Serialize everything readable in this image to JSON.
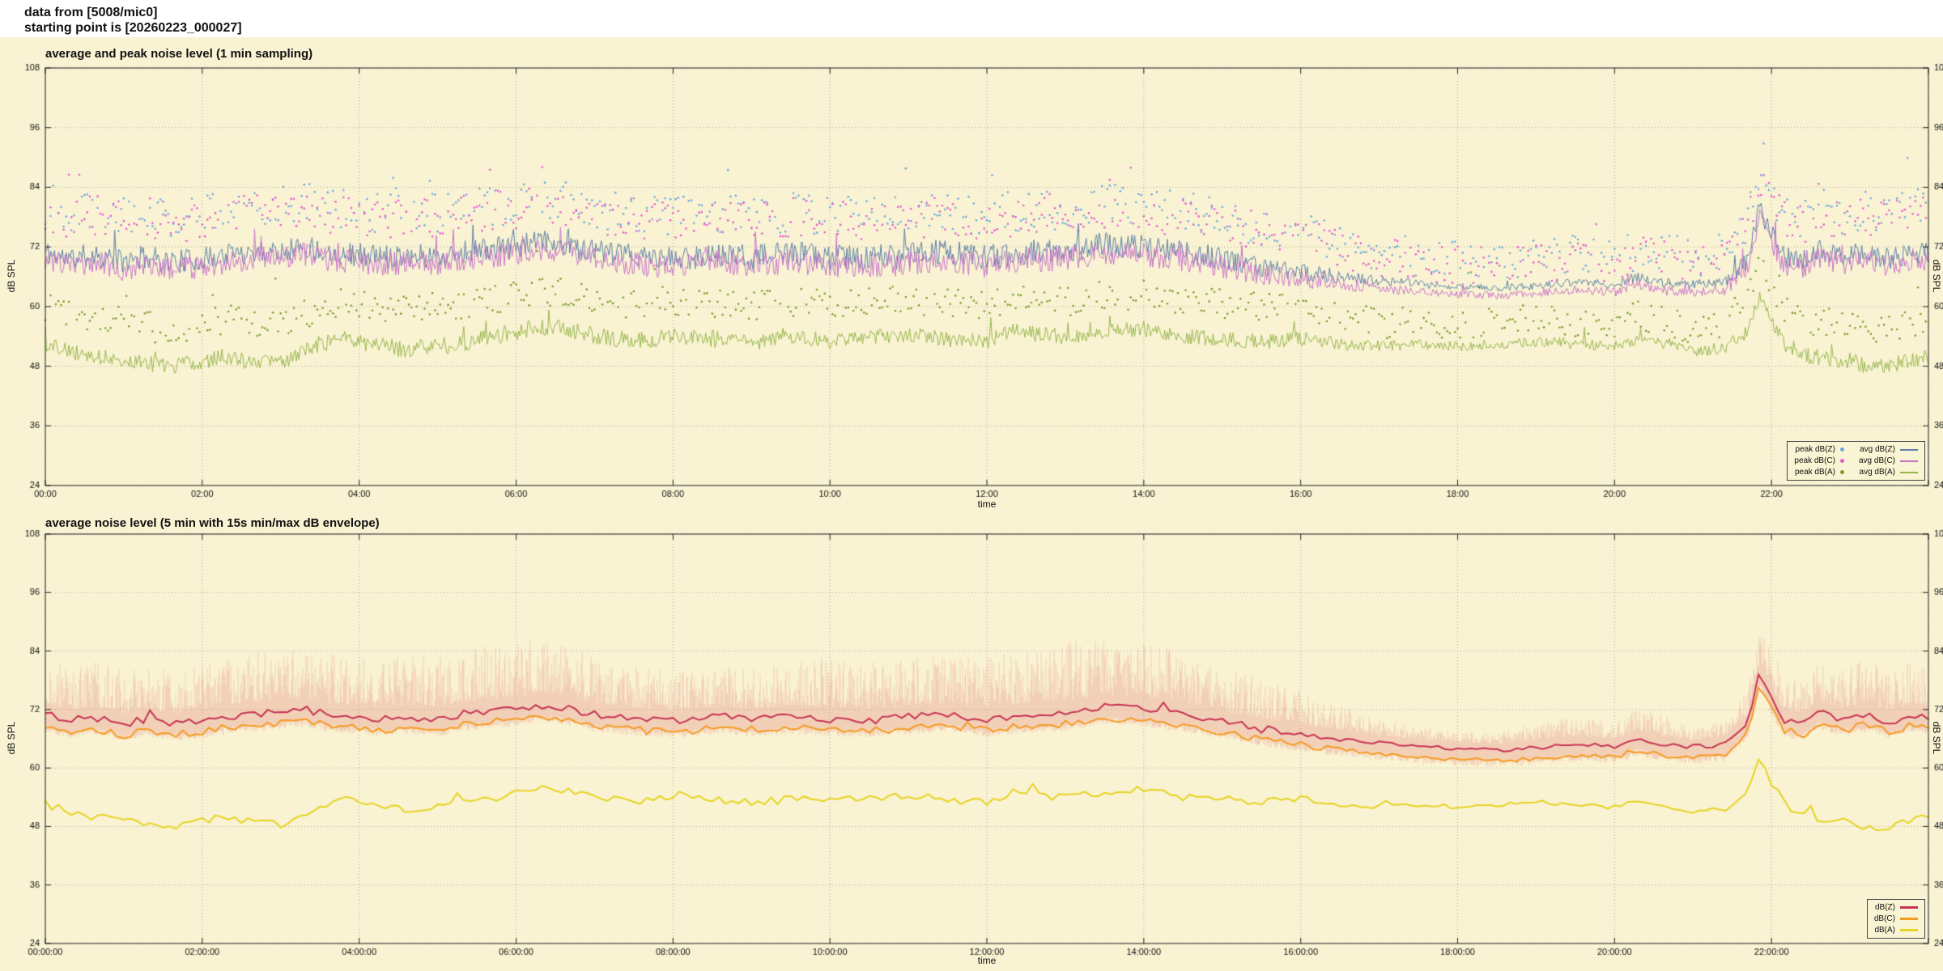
{
  "header": {
    "line1": "data from [5008/mic0]",
    "line2": "starting point is [20260223_000027]"
  },
  "palette": {
    "page_bg": "#ffffff",
    "chart_bg": "#f9f3d3",
    "grid": "#a8a890",
    "axis": "#222222",
    "text": "#111111",
    "envelope": "rgba(228,110,110,0.28)"
  },
  "chart_data": [
    {
      "type": "line",
      "title": "average and peak noise level (1 min sampling)",
      "xlabel": "time",
      "ylabel_left": "dB SPL",
      "ylabel_right": "dB SPL",
      "ylim": [
        24,
        108
      ],
      "yticks": [
        24,
        36,
        48,
        60,
        72,
        84,
        96,
        108
      ],
      "x_hours": [
        0,
        24
      ],
      "xtick_step_hours": 2,
      "xtick_style": "hm",
      "grid": true,
      "legend_position": "bottom-right",
      "sampling_minutes": 1,
      "series": [
        {
          "name": "avg dB(Z)",
          "color": "#5b7fa6",
          "width": 1,
          "base": "z",
          "offset": 0,
          "jitter": "zjit",
          "seed": 11
        },
        {
          "name": "avg dB(C)",
          "color": "#c873c8",
          "width": 1,
          "base": "z",
          "offset": -1.5,
          "jitter": "zjit",
          "seed": 23
        },
        {
          "name": "avg dB(A)",
          "color": "#97b54b",
          "width": 1,
          "base": "a",
          "offset": 0,
          "jitter": "ajit",
          "seed": 37
        }
      ],
      "scatter": [
        {
          "name": "peak dB(Z)",
          "color": "#6fa8dc",
          "base": "z",
          "peak_offset": "pkz",
          "spread": 4,
          "seed": 51,
          "step_minutes": 2
        },
        {
          "name": "peak dB(C)",
          "color": "#e65ad0",
          "base": "z",
          "peak_offset": "pkc",
          "spread": 4,
          "seed": 63,
          "step_minutes": 2
        },
        {
          "name": "peak dB(A)",
          "color": "#7d9c2e",
          "base": "a",
          "peak_offset": "pka",
          "spread": 3,
          "seed": 75,
          "step_minutes": 2
        }
      ]
    },
    {
      "type": "line",
      "title": "average noise level (5 min with 15s min/max dB envelope)",
      "xlabel": "time",
      "ylabel_left": "dB SPL",
      "ylabel_right": "dB SPL",
      "ylim": [
        24,
        108
      ],
      "yticks": [
        24,
        36,
        48,
        60,
        72,
        84,
        96,
        108
      ],
      "x_hours": [
        0,
        24
      ],
      "xtick_step_hours": 2,
      "xtick_style": "hms",
      "grid": true,
      "legend_position": "bottom-right",
      "sampling_minutes": 5,
      "envelope": {
        "base": "z",
        "amp": "env",
        "seed": 131
      },
      "series": [
        {
          "name": "dB(Z)",
          "color": "#c73352",
          "width": 2,
          "base": "z",
          "offset": 0,
          "jitter": "smooth",
          "seed": 91
        },
        {
          "name": "dB(C)",
          "color": "#f59a23",
          "width": 2,
          "base": "z",
          "offset": -2.2,
          "jitter": "smooth",
          "seed": 101
        },
        {
          "name": "dB(A)",
          "color": "#e6d322",
          "width": 2,
          "base": "a",
          "offset": 0,
          "jitter": "smooth",
          "seed": 111
        }
      ]
    }
  ],
  "curves": {
    "z": [
      [
        0,
        71
      ],
      [
        0.3,
        69.5
      ],
      [
        0.6,
        70.5
      ],
      [
        1,
        69
      ],
      [
        1.3,
        70
      ],
      [
        1.6,
        69
      ],
      [
        2,
        69.5
      ],
      [
        2.3,
        70.5
      ],
      [
        2.6,
        71
      ],
      [
        3,
        71.5
      ],
      [
        3.3,
        72
      ],
      [
        3.6,
        71
      ],
      [
        4,
        70.5
      ],
      [
        4.3,
        70
      ],
      [
        4.6,
        70.5
      ],
      [
        5,
        70
      ],
      [
        5.3,
        71
      ],
      [
        5.6,
        71.5
      ],
      [
        6,
        72
      ],
      [
        6.3,
        73
      ],
      [
        6.6,
        72.5
      ],
      [
        7,
        71
      ],
      [
        7.3,
        70.5
      ],
      [
        7.6,
        70
      ],
      [
        8,
        69.5
      ],
      [
        8.3,
        70
      ],
      [
        8.6,
        70.5
      ],
      [
        9,
        70
      ],
      [
        9.5,
        70.5
      ],
      [
        10,
        70
      ],
      [
        10.5,
        69.8
      ],
      [
        11,
        70.4
      ],
      [
        11.5,
        71
      ],
      [
        12,
        69.8
      ],
      [
        12.5,
        70.8
      ],
      [
        13,
        71.2
      ],
      [
        13.5,
        72.5
      ],
      [
        14,
        72
      ],
      [
        14.5,
        71
      ],
      [
        15,
        69.5
      ],
      [
        15.5,
        68
      ],
      [
        16,
        67
      ],
      [
        16.5,
        66
      ],
      [
        17,
        65.2
      ],
      [
        17.5,
        64.5
      ],
      [
        18,
        64
      ],
      [
        18.5,
        63.7
      ],
      [
        19,
        64.2
      ],
      [
        19.5,
        64.8
      ],
      [
        20,
        64.4
      ],
      [
        20.3,
        66
      ],
      [
        20.6,
        64.8
      ],
      [
        21,
        64.4
      ],
      [
        21.4,
        64.9
      ],
      [
        21.7,
        69.5
      ],
      [
        21.85,
        80
      ],
      [
        22,
        74.5
      ],
      [
        22.15,
        70
      ],
      [
        22.4,
        69
      ],
      [
        22.6,
        71.5
      ],
      [
        22.9,
        70
      ],
      [
        23.2,
        71
      ],
      [
        23.5,
        69.5
      ],
      [
        23.8,
        71
      ],
      [
        24,
        70.5
      ]
    ],
    "a": [
      [
        0,
        52.5
      ],
      [
        0.3,
        51
      ],
      [
        0.6,
        50
      ],
      [
        1,
        49.5
      ],
      [
        1.3,
        48.5
      ],
      [
        1.6,
        48
      ],
      [
        2,
        49
      ],
      [
        2.3,
        50
      ],
      [
        2.6,
        49
      ],
      [
        3,
        48.5
      ],
      [
        3.2,
        50
      ],
      [
        3.5,
        52.5
      ],
      [
        3.8,
        53.5
      ],
      [
        4,
        53
      ],
      [
        4.3,
        52
      ],
      [
        4.6,
        51.5
      ],
      [
        5,
        52
      ],
      [
        5.3,
        52.5
      ],
      [
        5.6,
        53.5
      ],
      [
        6,
        55
      ],
      [
        6.3,
        56
      ],
      [
        6.6,
        55.5
      ],
      [
        7,
        54
      ],
      [
        7.5,
        53
      ],
      [
        8,
        54
      ],
      [
        8.5,
        53.5
      ],
      [
        9,
        53
      ],
      [
        9.5,
        53.5
      ],
      [
        10,
        53.2
      ],
      [
        10.5,
        54
      ],
      [
        11,
        54.5
      ],
      [
        11.5,
        53.5
      ],
      [
        12,
        53
      ],
      [
        12.3,
        55
      ],
      [
        12.6,
        54.5
      ],
      [
        13,
        54
      ],
      [
        13.5,
        55
      ],
      [
        14,
        55.5
      ],
      [
        14.5,
        54
      ],
      [
        15,
        53.5
      ],
      [
        15.5,
        53
      ],
      [
        16,
        53.5
      ],
      [
        16.5,
        52.5
      ],
      [
        17,
        52
      ],
      [
        17.5,
        52.5
      ],
      [
        18,
        52
      ],
      [
        18.5,
        52.5
      ],
      [
        19,
        53
      ],
      [
        19.5,
        52.5
      ],
      [
        20,
        52
      ],
      [
        20.3,
        53.5
      ],
      [
        20.6,
        52.5
      ],
      [
        21,
        51
      ],
      [
        21.4,
        51.5
      ],
      [
        21.7,
        55
      ],
      [
        21.85,
        62
      ],
      [
        22,
        57
      ],
      [
        22.2,
        52
      ],
      [
        22.5,
        50
      ],
      [
        22.8,
        49.5
      ],
      [
        23,
        49
      ],
      [
        23.3,
        47.5
      ],
      [
        23.6,
        48.5
      ],
      [
        24,
        50
      ]
    ],
    "zjit": [
      [
        0,
        2.4
      ],
      [
        8,
        2.4
      ],
      [
        10,
        2.7
      ],
      [
        15,
        2.4
      ],
      [
        16,
        1.8
      ],
      [
        17,
        1.0
      ],
      [
        18,
        0.7
      ],
      [
        19,
        0.8
      ],
      [
        20.5,
        1.0
      ],
      [
        21.3,
        1.0
      ],
      [
        21.7,
        2.0
      ],
      [
        22,
        2.2
      ],
      [
        24,
        2.2
      ]
    ],
    "ajit": [
      [
        0,
        1.5
      ],
      [
        6,
        1.8
      ],
      [
        16,
        1.5
      ],
      [
        17,
        1.1
      ],
      [
        21,
        1.1
      ],
      [
        22,
        1.7
      ],
      [
        24,
        1.7
      ]
    ],
    "smooth": [
      [
        0,
        0.8
      ],
      [
        16,
        0.8
      ],
      [
        17,
        0.4
      ],
      [
        21.5,
        0.5
      ],
      [
        22,
        0.8
      ],
      [
        24,
        0.8
      ]
    ],
    "pkz": [
      [
        0,
        9
      ],
      [
        16,
        8
      ],
      [
        17,
        5.5
      ],
      [
        21,
        5.5
      ],
      [
        22,
        8
      ],
      [
        24,
        9
      ]
    ],
    "pkc": [
      [
        0,
        8
      ],
      [
        16,
        7
      ],
      [
        17,
        4.5
      ],
      [
        21,
        4.5
      ],
      [
        22,
        7
      ],
      [
        24,
        8
      ]
    ],
    "pka": [
      [
        0,
        7.5
      ],
      [
        16,
        7
      ],
      [
        17,
        4.5
      ],
      [
        21,
        4.5
      ],
      [
        22,
        7
      ],
      [
        24,
        7.5
      ]
    ],
    "env": [
      [
        0,
        11
      ],
      [
        1,
        10
      ],
      [
        2,
        11
      ],
      [
        3,
        12
      ],
      [
        4,
        11
      ],
      [
        5,
        12
      ],
      [
        6,
        13
      ],
      [
        7,
        11
      ],
      [
        8,
        9
      ],
      [
        9,
        9.5
      ],
      [
        10,
        12
      ],
      [
        11,
        11
      ],
      [
        12,
        12
      ],
      [
        13,
        13.5
      ],
      [
        14,
        13
      ],
      [
        15,
        11
      ],
      [
        16,
        8
      ],
      [
        16.5,
        6
      ],
      [
        17,
        4
      ],
      [
        17.5,
        3
      ],
      [
        18,
        2.5
      ],
      [
        18.5,
        2.5
      ],
      [
        19,
        4.5
      ],
      [
        19.5,
        5
      ],
      [
        20,
        4
      ],
      [
        20.5,
        6
      ],
      [
        21,
        3
      ],
      [
        21.5,
        4
      ],
      [
        21.85,
        7
      ],
      [
        22,
        9
      ],
      [
        22.5,
        9
      ],
      [
        23,
        10
      ],
      [
        24,
        10
      ]
    ]
  }
}
